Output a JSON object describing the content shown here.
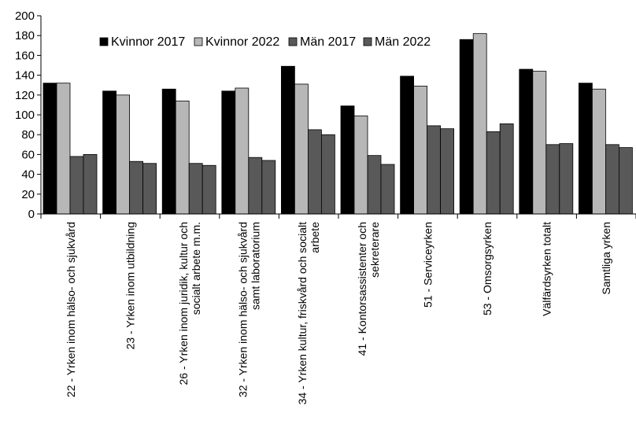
{
  "chart_data": {
    "type": "bar",
    "title": "",
    "xlabel": "",
    "ylabel": "",
    "ylim": [
      0,
      200
    ],
    "yticks": [
      0,
      20,
      40,
      60,
      80,
      100,
      120,
      140,
      160,
      180,
      200
    ],
    "grid": false,
    "legend_position": "top",
    "categories": [
      [
        "22 -  Yrken inom hälso- och sjukvård"
      ],
      [
        "23 -  Yrken inom utbildning"
      ],
      [
        "26 -  Yrken  inom juridik, kultur och",
        "socialt arbete m.m."
      ],
      [
        "32 -  Yrken inom hälso- och sjukvård",
        "samt laboratorium"
      ],
      [
        "34 -  Yrken kultur, friskvård och socialt",
        "arbete"
      ],
      [
        "41 -  Kontorsassistenter och",
        "sekreterare"
      ],
      [
        "51 -  Serviceyrken"
      ],
      [
        "53 -  Omsorgsyrken"
      ],
      [
        "Välfärdsyrken totalt"
      ],
      [
        "Samtliga yrken"
      ]
    ],
    "series": [
      {
        "name": "Kvinnor 2017",
        "color": "#000000",
        "values": [
          132,
          124,
          126,
          124,
          149,
          109,
          139,
          176,
          146,
          132
        ]
      },
      {
        "name": "Kvinnor 2022",
        "color": "#b7b7b7",
        "values": [
          132,
          120,
          114,
          127,
          131,
          99,
          129,
          182,
          144,
          126
        ]
      },
      {
        "name": "Män 2017",
        "color": "#595959",
        "values": [
          58,
          53,
          51,
          57,
          85,
          59,
          89,
          83,
          70,
          70
        ]
      },
      {
        "name": "Män 2022",
        "color": "#595959",
        "values": [
          60,
          51,
          49,
          54,
          80,
          50,
          86,
          91,
          71,
          67
        ]
      }
    ]
  }
}
